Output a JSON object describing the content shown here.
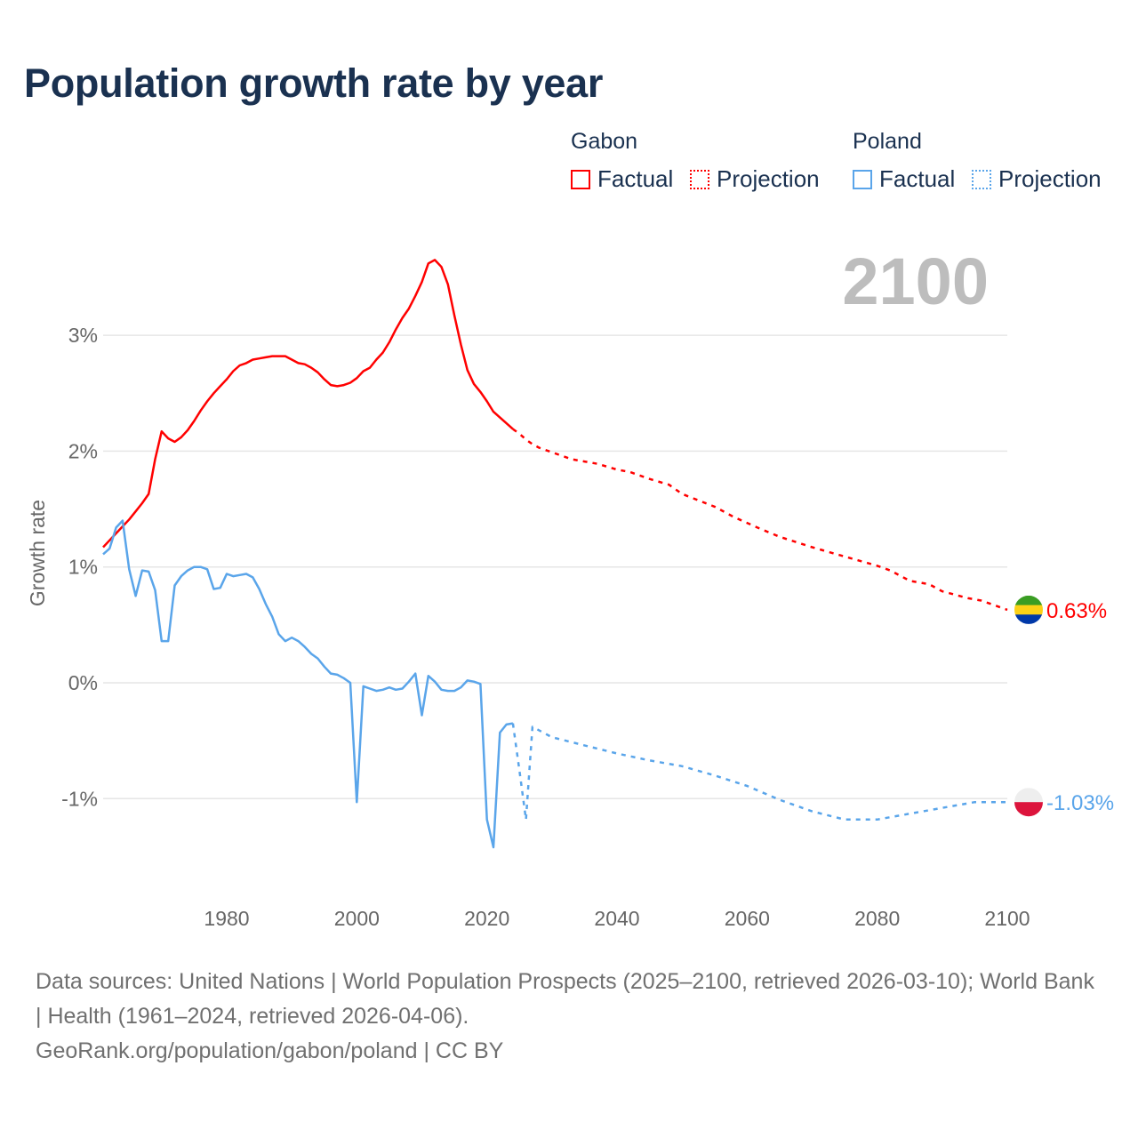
{
  "title": "Population growth rate by year",
  "legend": {
    "groups": [
      {
        "name": "Gabon",
        "color": "#ff0000",
        "factual": "Factual",
        "projection": "Projection"
      },
      {
        "name": "Poland",
        "color": "#5aa5ea",
        "factual": "Factual",
        "projection": "Projection"
      }
    ]
  },
  "year_label": "2100",
  "footer": {
    "sources": "Data sources: United Nations | World Population Prospects (2025–2100, retrieved 2026-03-10); World Bank | Health (1961–2024, retrieved 2026-04-06).",
    "credit": "GeoRank.org/population/gabon/poland | CC BY"
  },
  "chart_data": {
    "type": "line",
    "title": "Population growth rate by year",
    "xlabel": "",
    "ylabel": "Growth rate",
    "xlim": [
      1961,
      2100
    ],
    "ylim": [
      -1.8,
      3.7
    ],
    "xticks": [
      1980,
      2000,
      2020,
      2040,
      2060,
      2080,
      2100
    ],
    "yticks": [
      -1,
      0,
      1,
      2,
      3
    ],
    "ytick_labels": [
      "-1%",
      "0%",
      "1%",
      "2%",
      "3%"
    ],
    "grid": true,
    "legend_position": "top-right",
    "series": [
      {
        "name": "Gabon Factual",
        "country": "Gabon",
        "kind": "factual",
        "color": "#ff0000",
        "x": [
          1961,
          1962,
          1963,
          1964,
          1965,
          1966,
          1967,
          1968,
          1969,
          1970,
          1971,
          1972,
          1973,
          1974,
          1975,
          1976,
          1977,
          1978,
          1979,
          1980,
          1981,
          1982,
          1983,
          1984,
          1985,
          1986,
          1987,
          1988,
          1989,
          1990,
          1991,
          1992,
          1993,
          1994,
          1995,
          1996,
          1997,
          1998,
          1999,
          2000,
          2001,
          2002,
          2003,
          2004,
          2005,
          2006,
          2007,
          2008,
          2009,
          2010,
          2011,
          2012,
          2013,
          2014,
          2015,
          2016,
          2017,
          2018,
          2019,
          2020,
          2021,
          2022,
          2023,
          2024
        ],
        "y": [
          1.17,
          1.23,
          1.29,
          1.35,
          1.41,
          1.48,
          1.55,
          1.63,
          1.93,
          2.17,
          2.11,
          2.08,
          2.12,
          2.18,
          2.26,
          2.35,
          2.43,
          2.5,
          2.56,
          2.62,
          2.69,
          2.74,
          2.76,
          2.79,
          2.8,
          2.81,
          2.82,
          2.82,
          2.82,
          2.79,
          2.76,
          2.75,
          2.72,
          2.68,
          2.62,
          2.57,
          2.56,
          2.57,
          2.59,
          2.63,
          2.69,
          2.72,
          2.79,
          2.85,
          2.94,
          3.05,
          3.15,
          3.23,
          3.34,
          3.46,
          3.62,
          3.65,
          3.59,
          3.44,
          3.17,
          2.92,
          2.7,
          2.58,
          2.51,
          2.43,
          2.34,
          2.29,
          2.24,
          2.19
        ]
      },
      {
        "name": "Gabon Projection",
        "country": "Gabon",
        "kind": "projection",
        "color": "#ff0000",
        "x": [
          2024,
          2025,
          2026,
          2027,
          2028,
          2030,
          2033,
          2035,
          2037,
          2040,
          2042,
          2045,
          2048,
          2050,
          2055,
          2058,
          2062,
          2065,
          2070,
          2075,
          2080,
          2082,
          2085,
          2088,
          2090,
          2094,
          2096,
          2098,
          2100
        ],
        "y": [
          2.19,
          2.15,
          2.1,
          2.06,
          2.03,
          1.99,
          1.93,
          1.91,
          1.89,
          1.84,
          1.82,
          1.76,
          1.71,
          1.63,
          1.52,
          1.43,
          1.33,
          1.26,
          1.17,
          1.09,
          1.01,
          0.97,
          0.88,
          0.85,
          0.79,
          0.73,
          0.71,
          0.67,
          0.63
        ]
      },
      {
        "name": "Poland Factual",
        "country": "Poland",
        "kind": "factual",
        "color": "#5aa5ea",
        "x": [
          1961,
          1962,
          1963,
          1964,
          1965,
          1966,
          1967,
          1968,
          1969,
          1970,
          1971,
          1972,
          1973,
          1974,
          1975,
          1976,
          1977,
          1978,
          1979,
          1980,
          1981,
          1982,
          1983,
          1984,
          1985,
          1986,
          1987,
          1988,
          1989,
          1990,
          1991,
          1992,
          1993,
          1994,
          1995,
          1996,
          1997,
          1998,
          1999,
          2000,
          2001,
          2002,
          2003,
          2004,
          2005,
          2006,
          2007,
          2008,
          2009,
          2010,
          2011,
          2012,
          2013,
          2014,
          2015,
          2016,
          2017,
          2018,
          2019,
          2020,
          2021,
          2022,
          2023,
          2024
        ],
        "y": [
          1.11,
          1.16,
          1.34,
          1.4,
          0.98,
          0.75,
          0.97,
          0.96,
          0.8,
          0.36,
          0.36,
          0.84,
          0.92,
          0.97,
          1.0,
          1.0,
          0.98,
          0.81,
          0.82,
          0.94,
          0.92,
          0.93,
          0.94,
          0.91,
          0.81,
          0.68,
          0.57,
          0.42,
          0.36,
          0.39,
          0.36,
          0.31,
          0.25,
          0.21,
          0.14,
          0.08,
          0.07,
          0.04,
          0.0,
          -1.03,
          -0.03,
          -0.05,
          -0.07,
          -0.06,
          -0.04,
          -0.06,
          -0.05,
          0.01,
          0.08,
          -0.28,
          0.06,
          0.01,
          -0.06,
          -0.07,
          -0.07,
          -0.04,
          0.02,
          0.01,
          -0.01,
          -1.18,
          -1.42,
          -0.43,
          -0.36,
          -0.35
        ]
      },
      {
        "name": "Poland Projection",
        "country": "Poland",
        "kind": "projection",
        "color": "#5aa5ea",
        "x": [
          2024,
          2025,
          2026,
          2027,
          2030,
          2035,
          2040,
          2045,
          2050,
          2055,
          2060,
          2065,
          2070,
          2075,
          2080,
          2085,
          2090,
          2095,
          2100
        ],
        "y": [
          -0.35,
          -0.76,
          -1.18,
          -0.38,
          -0.47,
          -0.54,
          -0.61,
          -0.67,
          -0.72,
          -0.8,
          -0.89,
          -1.01,
          -1.11,
          -1.18,
          -1.18,
          -1.13,
          -1.08,
          -1.03,
          -1.03
        ]
      }
    ],
    "end_labels": [
      {
        "country": "Gabon",
        "value": 0.63,
        "text": "0.63%",
        "color": "#ff0000",
        "flag": [
          "#3a9d23",
          "#fcd116",
          "#0038a8"
        ]
      },
      {
        "country": "Poland",
        "value": -1.03,
        "text": "-1.03%",
        "color": "#5aa5ea",
        "flag": [
          "#eeeeee",
          "#dc143c"
        ]
      }
    ]
  }
}
